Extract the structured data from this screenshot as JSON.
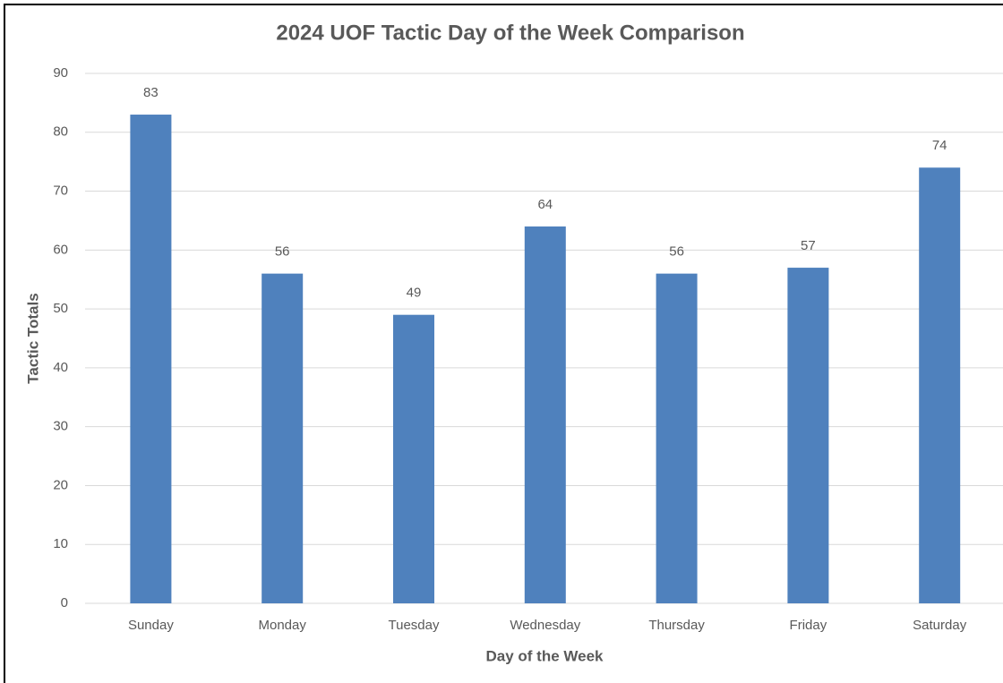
{
  "chart_data": {
    "type": "bar",
    "title": "2024 UOF Tactic Day of the Week Comparison",
    "x_label": "Day of the Week",
    "y_label": "Tactic Totals",
    "categories": [
      "Sunday",
      "Monday",
      "Tuesday",
      "Wednesday",
      "Thursday",
      "Friday",
      "Saturday"
    ],
    "values": [
      83,
      56,
      49,
      64,
      56,
      57,
      74
    ],
    "color": "#4f81bd",
    "ylim": [
      0,
      90
    ],
    "yticks": [
      0,
      10,
      20,
      30,
      40,
      50,
      60,
      70,
      80,
      90
    ],
    "grid": true
  }
}
